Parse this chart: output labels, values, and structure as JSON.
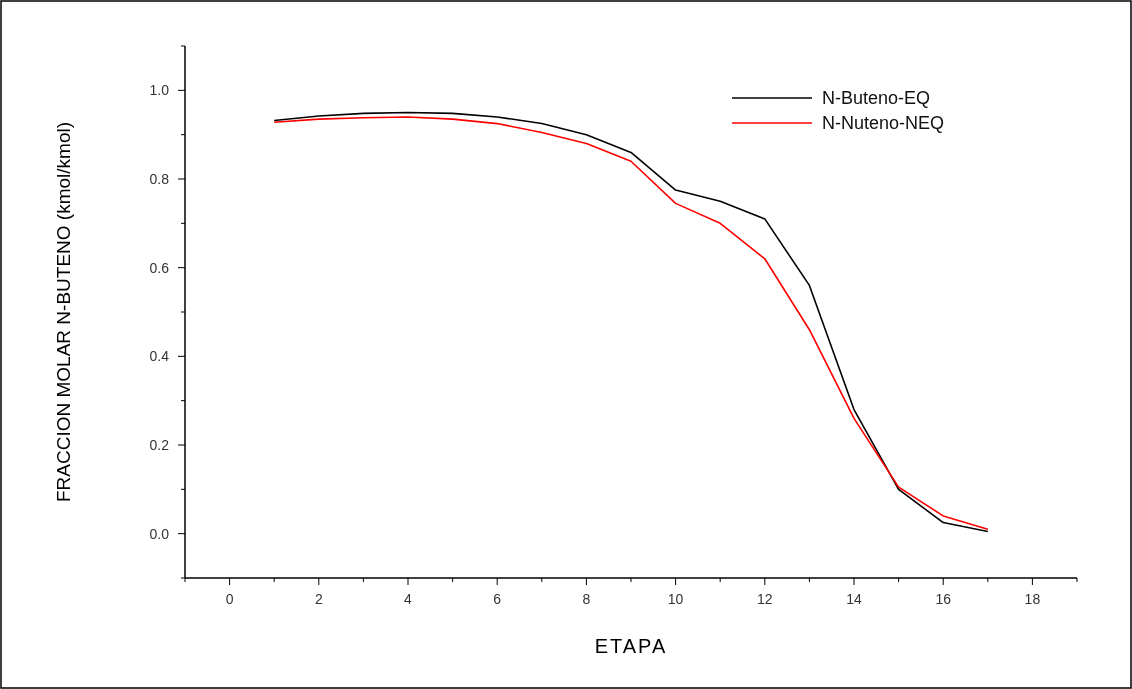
{
  "chart_data": {
    "type": "line",
    "xlabel": "ETAPA",
    "ylabel": "FRACCION MOLAR N-BUTENO (kmol/kmol)",
    "x": [
      1,
      2,
      3,
      4,
      5,
      6,
      7,
      8,
      9,
      10,
      11,
      12,
      13,
      14,
      15,
      16,
      17
    ],
    "series": [
      {
        "name": "N-Buteno-EQ",
        "color": "#000000",
        "values": [
          0.932,
          0.942,
          0.948,
          0.95,
          0.948,
          0.94,
          0.925,
          0.9,
          0.86,
          0.775,
          0.75,
          0.71,
          0.56,
          0.28,
          0.1,
          0.025,
          0.005
        ]
      },
      {
        "name": "N-Nuteno-NEQ",
        "color": "#ff0000",
        "values": [
          0.928,
          0.935,
          0.938,
          0.94,
          0.935,
          0.925,
          0.905,
          0.88,
          0.84,
          0.745,
          0.7,
          0.62,
          0.46,
          0.26,
          0.105,
          0.04,
          0.01
        ]
      }
    ],
    "xlim": [
      -1,
      19
    ],
    "xticks": [
      {
        "value": -1,
        "label": null
      },
      0,
      {
        "value": 1,
        "label": null
      },
      2,
      {
        "value": 3,
        "label": null
      },
      4,
      {
        "value": 5,
        "label": null
      },
      6,
      {
        "value": 7,
        "label": null
      },
      8,
      {
        "value": 9,
        "label": null
      },
      10,
      {
        "value": 11,
        "label": null
      },
      12,
      {
        "value": 13,
        "label": null
      },
      14,
      {
        "value": 15,
        "label": null
      },
      16,
      {
        "value": 17,
        "label": null
      },
      18,
      {
        "value": 19,
        "label": null
      }
    ],
    "ylim": [
      -0.1,
      1.1
    ],
    "yticks": [
      {
        "value": -0.1,
        "label": null
      },
      {
        "value": 0,
        "label": "0.0"
      },
      {
        "value": 0.1,
        "label": null
      },
      {
        "value": 0.2,
        "label": "0.2"
      },
      {
        "value": 0.3,
        "label": null
      },
      {
        "value": 0.4,
        "label": "0.4"
      },
      {
        "value": 0.5,
        "label": null
      },
      {
        "value": 0.6,
        "label": "0.6"
      },
      {
        "value": 0.7,
        "label": null
      },
      {
        "value": 0.8,
        "label": "0.8"
      },
      {
        "value": 0.9,
        "label": null
      },
      {
        "value": 1,
        "label": "1.0"
      },
      {
        "value": 1.1,
        "label": null
      }
    ],
    "legend": "top right",
    "grid": false,
    "marker": "none",
    "line_style": "solid"
  }
}
